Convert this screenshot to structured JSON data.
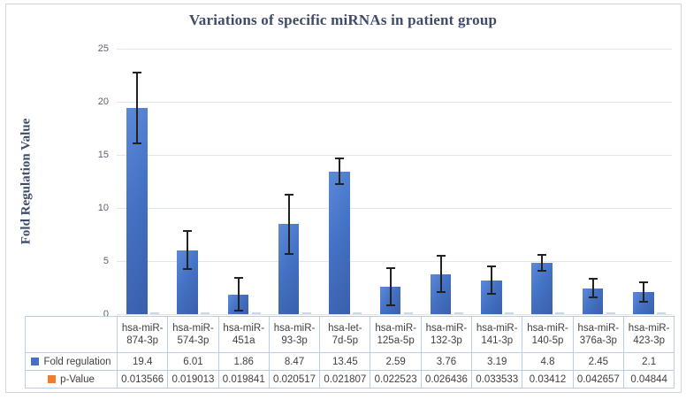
{
  "figure_title": "Variations of specific miRNAs in patient group",
  "y_axis": {
    "title": "Fold Regulation Value",
    "ticks": [
      0,
      5,
      10,
      15,
      20,
      25
    ]
  },
  "legend": {
    "fold_label": "Fold regulation",
    "p_label": "p-Value",
    "fold_color": "#4472c4",
    "p_color": "#ed7d31"
  },
  "chart_data": {
    "type": "bar",
    "title": "Variations of specific miRNAs in patient group",
    "xlabel": "",
    "ylabel": "Fold Regulation Value",
    "ylim": [
      0,
      25
    ],
    "ytick_step": 5,
    "grid": true,
    "legend_position": "data-table-left",
    "categories": [
      "hsa-miR-874-3p",
      "hsa-miR-574-3p",
      "hsa-miR-451a",
      "hsa-miR-93-3p",
      "hsa-let-7d-5p",
      "hsa-miR-125a-5p",
      "hsa-miR-132-3p",
      "hsa-miR-141-3p",
      "hsa-miR-140-5p",
      "hsa-miR-376a-3p",
      "hsa-miR-423-3p"
    ],
    "category_label_lines": [
      [
        "hsa-miR-",
        "874-3p"
      ],
      [
        "hsa-miR-",
        "574-3p"
      ],
      [
        "hsa-miR-",
        "451a"
      ],
      [
        "hsa-miR-",
        "93-3p"
      ],
      [
        "hsa-let-",
        "7d-5p"
      ],
      [
        "hsa-miR-",
        "125a-5p"
      ],
      [
        "hsa-miR-",
        "132-3p"
      ],
      [
        "hsa-miR-",
        "141-3p"
      ],
      [
        "hsa-miR-",
        "140-5p"
      ],
      [
        "hsa-miR-",
        "376a-3p"
      ],
      [
        "hsa-miR-",
        "423-3p"
      ]
    ],
    "series": [
      {
        "name": "Fold regulation",
        "color": "#4472c4",
        "values": [
          19.4,
          6.01,
          1.86,
          8.47,
          13.45,
          2.59,
          3.76,
          3.19,
          4.8,
          2.45,
          2.1
        ],
        "error_bars_plus_minus": [
          3.35,
          1.8,
          1.55,
          2.8,
          1.2,
          1.75,
          1.7,
          1.3,
          0.75,
          0.85,
          0.9
        ]
      },
      {
        "name": "p-Value",
        "color": "#ed7d31",
        "values": [
          0.013566,
          0.019013,
          0.019841,
          0.020517,
          0.021807,
          0.022523,
          0.026436,
          0.033533,
          0.03412,
          0.042657,
          0.04844
        ]
      }
    ]
  }
}
